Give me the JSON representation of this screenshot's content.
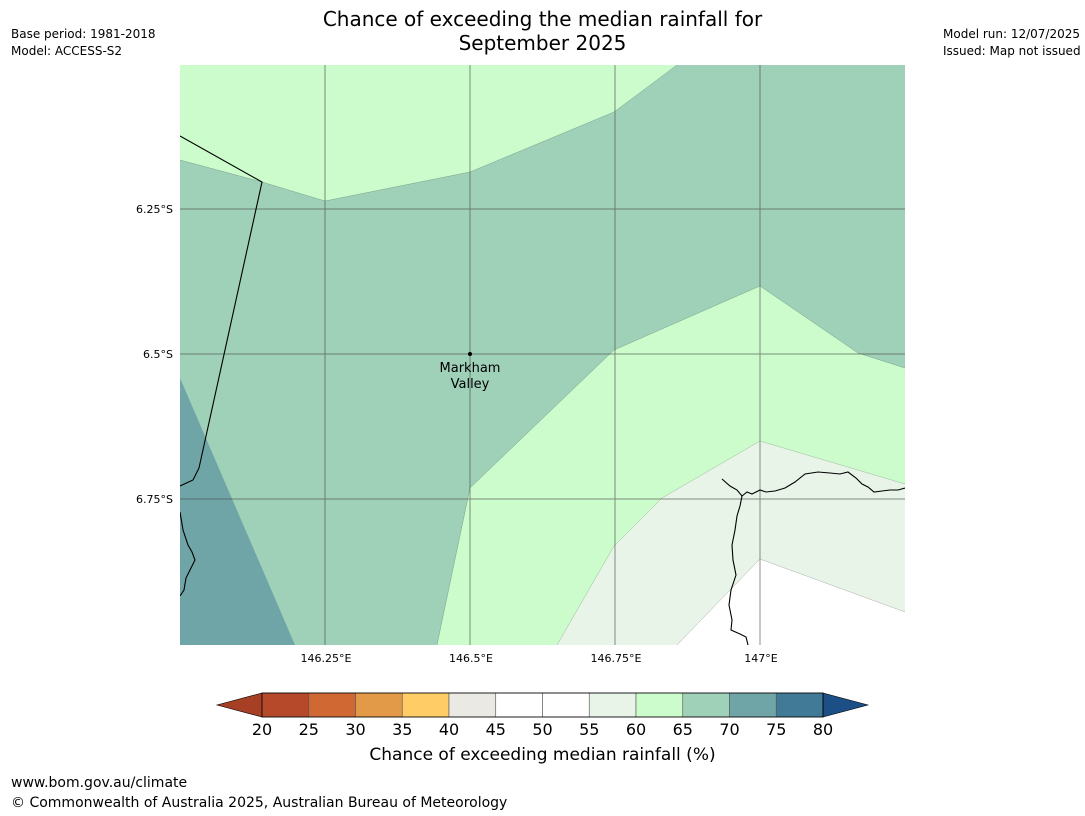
{
  "header": {
    "title_line1": "Chance of exceeding the median rainfall for",
    "title_line2": "September 2025",
    "base_period": "Base period: 1981-2018",
    "model": "Model: ACCESS-S2",
    "model_run": "Model run: 12/07/2025",
    "issued": "Issued: Map not issued"
  },
  "map": {
    "lon_ticks": [
      "146.25°E",
      "146.5°E",
      "146.75°E",
      "147°E"
    ],
    "lat_ticks": [
      "6.25°S",
      "6.5°S",
      "6.75°S"
    ],
    "location_line1": "Markham",
    "location_line2": "Valley",
    "colors": {
      "band_55_60": "#e8f4e8",
      "band_60_65": "#ccfccc",
      "band_65_70": "#9fd0b8",
      "band_70_75": "#70a5a8"
    }
  },
  "colorbar": {
    "ticks": [
      "20",
      "25",
      "30",
      "35",
      "40",
      "45",
      "50",
      "55",
      "60",
      "65",
      "70",
      "75",
      "80"
    ],
    "colors": [
      "#a73f25",
      "#b5492a",
      "#d06833",
      "#e39a48",
      "#ffcc66",
      "#ebe9e4",
      "#ffffff",
      "#ffffff",
      "#e8f4e8",
      "#ccfccc",
      "#9fd0b8",
      "#70a5a8",
      "#417a97",
      "#1c4f85"
    ],
    "label": "Chance of exceeding median rainfall (%)"
  },
  "footer": {
    "url": "www.bom.gov.au/climate",
    "copyright": "© Commonwealth of Australia 2025, Australian Bureau of Meteorology"
  }
}
